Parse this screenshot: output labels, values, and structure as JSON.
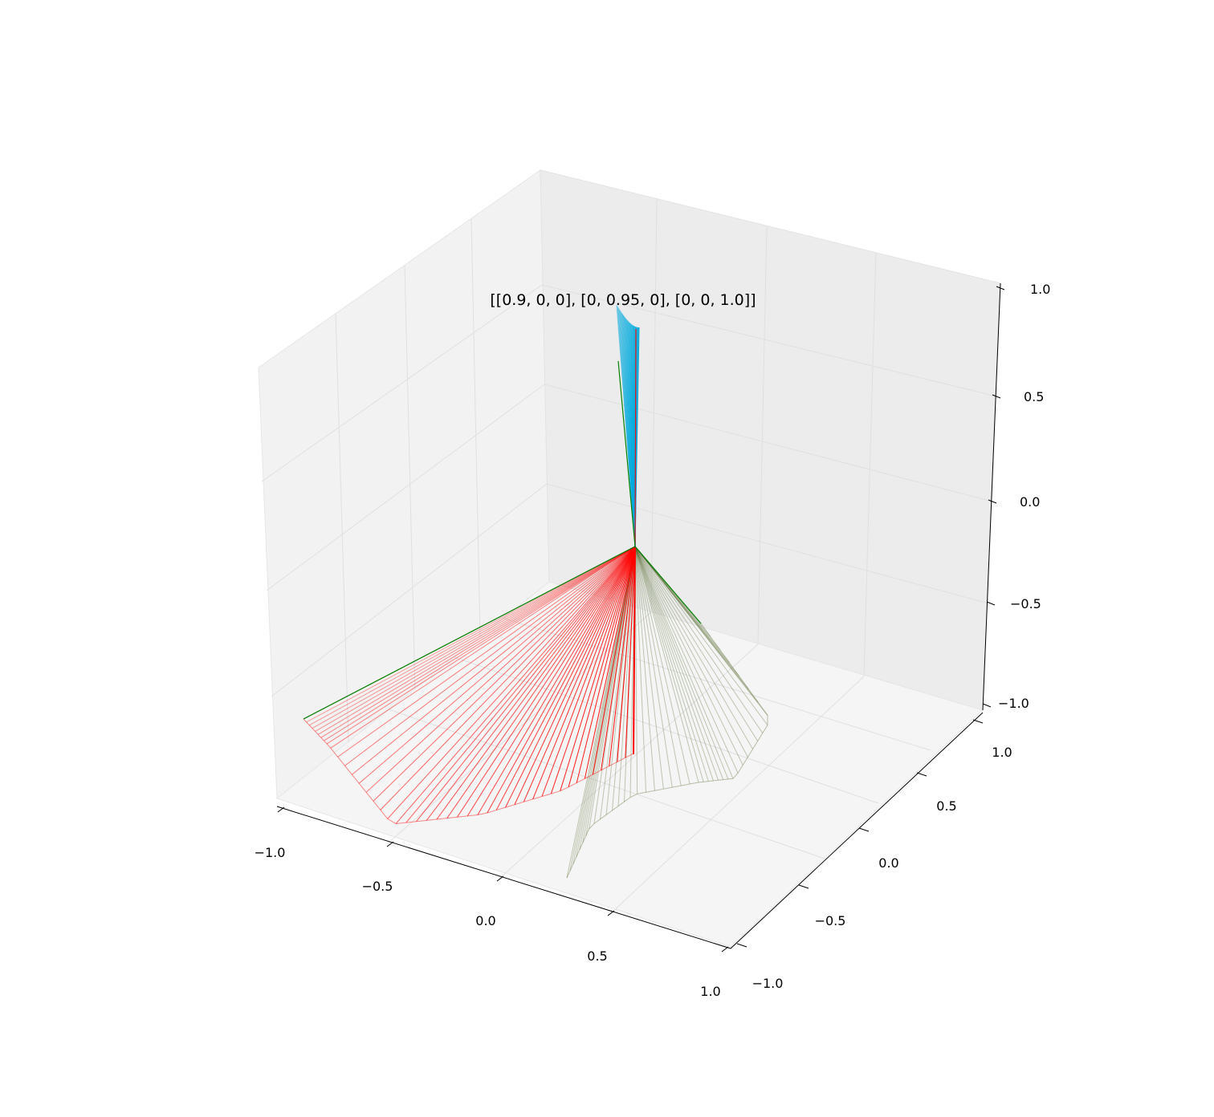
{
  "chart_data": {
    "type": "3d-line",
    "title": "[[0.9, 0, 0], [0, 0.95, 0], [0, 0, 1.0]]",
    "xlim": [
      -1.0,
      1.0
    ],
    "ylim": [
      -1.0,
      1.0
    ],
    "zlim": [
      -1.0,
      1.0
    ],
    "x_ticks": [
      "−1.0",
      "−0.5",
      "0.0",
      "0.5",
      "1.0"
    ],
    "y_ticks": [
      "−1.0",
      "−0.5",
      "0.0",
      "0.5",
      "1.0"
    ],
    "z_ticks": [
      "−1.0",
      "−0.5",
      "0.0",
      "0.5",
      "1.0"
    ],
    "grid": true,
    "series": [
      {
        "color": "#00aadd",
        "shape": "near-vertical fan above origin, z from about 0.25 to 1.0"
      },
      {
        "color": "#ff0000",
        "shape": "fan of lines from origin toward (-x, -y, -z) corner"
      },
      {
        "color": "#556b2f",
        "shape": "fan of lines from origin toward (+x, -y, -z) region"
      },
      {
        "color": "#008000",
        "shape": "axis reference lines"
      }
    ]
  },
  "colors": {
    "pane_left": "#f2f2f2",
    "pane_right": "#ececec",
    "pane_floor": "#f5f5f5",
    "grid": "#e0e0e0",
    "cyan": "#00aadd",
    "red": "#ff0000",
    "olive": "#556b2f",
    "green": "#008000"
  }
}
